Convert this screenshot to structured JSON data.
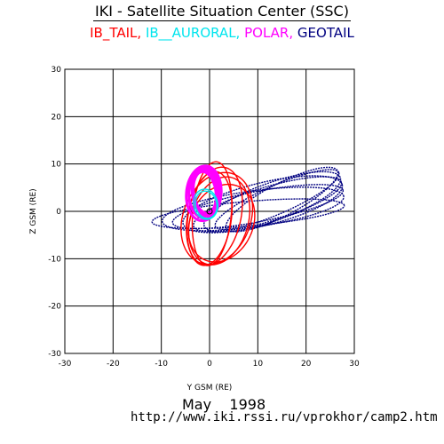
{
  "header": {
    "title": "IKI - Satellite Situation Center (SSC)"
  },
  "legend": [
    {
      "label": "IB_TAIL,",
      "color": "#ff0000"
    },
    {
      "label": "IB__AURORAL,",
      "color": "#00e5ee"
    },
    {
      "label": "POLAR,",
      "color": "#ff00ff"
    },
    {
      "label": "GEOTAIL",
      "color": "#000080"
    }
  ],
  "footer": {
    "date": "May    1998",
    "url": "http://www.iki.rssi.ru/vprokhor/camp2.htm"
  },
  "chart_data": {
    "type": "line",
    "xlabel": "Y GSM (RE)",
    "ylabel": "Z GSM (RE)",
    "xlim": [
      -30,
      30
    ],
    "ylim": [
      -30,
      30
    ],
    "grid": true,
    "xticks": [
      "-30",
      "-20",
      "-10",
      "0",
      "10",
      "20",
      "30"
    ],
    "yticks": [
      "30",
      "20",
      "10",
      "0",
      "-10",
      "-20",
      "-30"
    ],
    "series": [
      {
        "name": "GEOTAIL",
        "color": "#000080",
        "loops": [
          {
            "cx": 9,
            "cy": 0.5,
            "ax": 19,
            "ay": 3.8,
            "tilt": 8
          },
          {
            "cx": 10,
            "cy": 1,
            "ax": 18,
            "ay": 3.2,
            "tilt": 11
          },
          {
            "cx": 11,
            "cy": 1.5,
            "ax": 17,
            "ay": 4.5,
            "tilt": 14
          },
          {
            "cx": 12,
            "cy": 1.5,
            "ax": 16,
            "ay": 3.6,
            "tilt": 17
          },
          {
            "cx": 13,
            "cy": 2,
            "ax": 15,
            "ay": 4,
            "tilt": 20
          },
          {
            "cx": 14,
            "cy": 2.5,
            "ax": 14,
            "ay": 3,
            "tilt": 24
          },
          {
            "cx": 8,
            "cy": -0.5,
            "ax": 20,
            "ay": 2.6,
            "tilt": 5
          },
          {
            "cx": 15,
            "cy": 2.5,
            "ax": 13,
            "ay": 3.4,
            "tilt": 28
          }
        ]
      },
      {
        "name": "IB_TAIL",
        "color": "#ff0000",
        "loops": [
          {
            "cx": 0,
            "cy": -1.5,
            "ax": 4.5,
            "ay": 10,
            "tilt": -8
          },
          {
            "cx": 1,
            "cy": -1,
            "ax": 5.5,
            "ay": 10.5,
            "tilt": -12
          },
          {
            "cx": 2,
            "cy": -2,
            "ax": 6,
            "ay": 9.5,
            "tilt": -16
          },
          {
            "cx": 1.5,
            "cy": -1.5,
            "ax": 7,
            "ay": 10,
            "tilt": -20
          },
          {
            "cx": 0.5,
            "cy": -0.5,
            "ax": 4,
            "ay": 11,
            "tilt": -5
          },
          {
            "cx": 2.5,
            "cy": -2.5,
            "ax": 6.5,
            "ay": 8.5,
            "tilt": -24
          }
        ]
      },
      {
        "name": "POLAR",
        "color": "#ff00ff",
        "loops": [
          {
            "cx": -1,
            "cy": 4,
            "ax": 3.3,
            "ay": 5.5,
            "tilt": 0
          },
          {
            "cx": -0.8,
            "cy": 4.2,
            "ax": 2.8,
            "ay": 5,
            "tilt": 5
          },
          {
            "cx": -1.2,
            "cy": 3.8,
            "ax": 3.6,
            "ay": 5.8,
            "tilt": -5
          },
          {
            "cx": -1,
            "cy": 4,
            "ax": 2.3,
            "ay": 4.4,
            "tilt": 8
          },
          {
            "cx": -1.1,
            "cy": 4.1,
            "ax": 3.1,
            "ay": 5.2,
            "tilt": -8
          },
          {
            "cx": -0.9,
            "cy": 3.9,
            "ax": 2.6,
            "ay": 4.8,
            "tilt": 3
          }
        ]
      },
      {
        "name": "IB__AURORAL",
        "color": "#00e5ee",
        "loops": [
          {
            "cx": -0.8,
            "cy": 1.5,
            "ax": 2.5,
            "ay": 3.2,
            "tilt": 10
          },
          {
            "cx": -0.7,
            "cy": 1.4,
            "ax": 2.2,
            "ay": 2.9,
            "tilt": 12
          }
        ]
      }
    ]
  }
}
